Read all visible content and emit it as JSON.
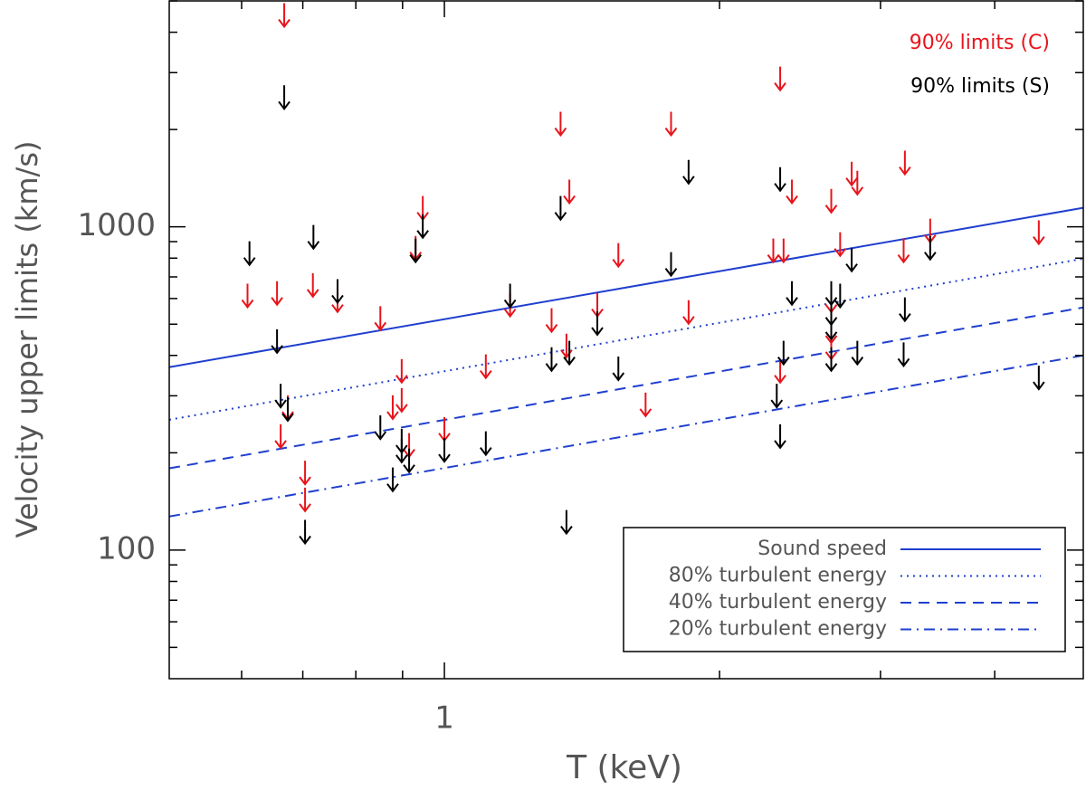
{
  "chart_data": {
    "type": "scatter",
    "xlabel": "T (keV)",
    "ylabel": "Velocity upper limits (km/s)",
    "xscale": "log",
    "yscale": "log",
    "xlim": [
      0.5,
      5
    ],
    "ylim": [
      40,
      5000
    ],
    "xticks": [
      1
    ],
    "xminor_ticks": [
      0.6,
      0.7,
      0.8,
      0.9,
      2,
      3,
      4
    ],
    "yticks": [
      100,
      1000
    ],
    "yminor_ticks": [
      50,
      60,
      70,
      80,
      90,
      200,
      300,
      400,
      500,
      600,
      700,
      800,
      900,
      2000,
      3000,
      4000,
      5000
    ],
    "marker": "down-arrow",
    "legend": "upper right",
    "series": [
      {
        "name": "90% limits (C)",
        "color": "#e8141b",
        "x": [
          0.668,
          2.33,
          1.34,
          1.77,
          1.37,
          0.947,
          3.19,
          2.79,
          2.83,
          2.4,
          2.65,
          0.93,
          1.55,
          2.29,
          2.35,
          2.71,
          3.18,
          3.4,
          4.47,
          0.609,
          0.656,
          0.718,
          0.764,
          0.851,
          1.18,
          1.47,
          1.31,
          1.85,
          2.65,
          2.65,
          2.65,
          1.36,
          0.898,
          2.33,
          1.11,
          0.898,
          0.878,
          0.674,
          0.662,
          1.0,
          1.66,
          0.915,
          0.704,
          0.704
        ],
        "values": [
          4920,
          3130,
          2270,
          2270,
          1400,
          1245,
          1720,
          1590,
          1490,
          1400,
          1310,
          937,
          891,
          920,
          920,
          962,
          920,
          1060,
          1047,
          667,
          679,
          719,
          645,
          568,
          625,
          625,
          560,
          593,
          645,
          517,
          461,
          467,
          390,
          390,
          403,
          317,
          301,
          301,
          245,
          258,
          307,
          230,
          189,
          156
        ]
      },
      {
        "name": "90% limits (S)",
        "color": "#000000",
        "x": [
          0.668,
          0.612,
          0.719,
          1.34,
          1.85,
          2.33,
          0.947,
          0.93,
          1.77,
          2.79,
          3.4,
          0.764,
          1.18,
          2.4,
          2.65,
          2.71,
          3.19,
          2.65,
          2.65,
          1.47,
          0.656,
          1.31,
          1.37,
          2.35,
          2.65,
          2.83,
          3.18,
          1.55,
          2.31,
          4.47,
          0.662,
          0.674,
          0.851,
          0.898,
          0.898,
          1.11,
          1.0,
          2.33,
          0.915,
          0.878,
          1.36,
          0.704
        ],
        "values": [
          2740,
          902,
          1013,
          1245,
          1610,
          1530,
          1094,
          920,
          835,
          862,
          937,
          689,
          667,
          679,
          679,
          667,
          605,
          589,
          531,
          548,
          482,
          424,
          444,
          444,
          424,
          444,
          439,
          397,
          327,
          372,
          327,
          297,
          261,
          237,
          221,
          233,
          222,
          245,
          206,
          180,
          133,
          124
        ]
      }
    ],
    "lines_legend": "lower right",
    "lines": [
      {
        "name": "Sound speed",
        "color": "#1f3fcf",
        "dash": "solid",
        "x": [
          0.5,
          5
        ],
        "values": [
          368,
          1145
        ]
      },
      {
        "name": "80% turbulent energy",
        "color": "#1f3fcf",
        "dash": "dotted",
        "x": [
          0.5,
          5
        ],
        "values": [
          253,
          797
        ]
      },
      {
        "name": "40% turbulent energy",
        "color": "#1f3fcf",
        "dash": "dashed",
        "x": [
          0.5,
          5
        ],
        "values": [
          179,
          563
        ]
      },
      {
        "name": "20% turbulent energy",
        "color": "#1f3fcf",
        "dash": "dashdot",
        "x": [
          0.5,
          5
        ],
        "values": [
          127,
          400
        ]
      }
    ]
  }
}
